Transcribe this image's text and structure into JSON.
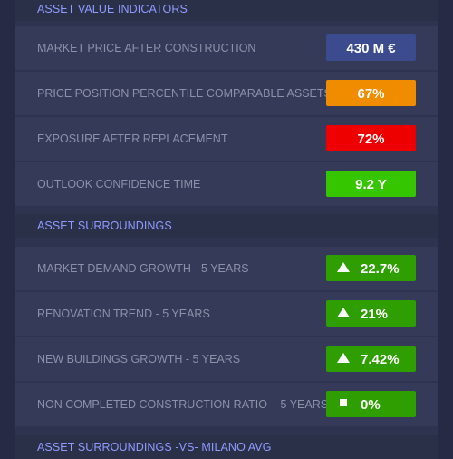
{
  "colors": {
    "neutral": "#3c4b8e",
    "orange": "#f08c00",
    "red": "#ee0000",
    "bright_green": "#35c600",
    "green": "#2e9e00"
  },
  "sections": {
    "asset_value": {
      "title": "ASSET VALUE INDICATORS",
      "rows": [
        {
          "label": "MARKET PRICE AFTER CONSTRUCTION",
          "value": "430 M €",
          "color": "neutral"
        },
        {
          "label": "PRICE POSITION PERCENTILE COMPARABLE ASSETS",
          "value": "67%",
          "color": "orange"
        },
        {
          "label": "EXPOSURE AFTER REPLACEMENT",
          "value": "72%",
          "color": "red"
        },
        {
          "label": "OUTLOOK CONFIDENCE TIME",
          "value": "9.2 Y",
          "color": "bright_green"
        }
      ]
    },
    "asset_surroundings": {
      "title": "ASSET SURROUNDINGS",
      "rows": [
        {
          "label": "MARKET DEMAND GROWTH - 5 YEARS",
          "value": "22.7%",
          "icon": "triangle-up-icon",
          "color": "green"
        },
        {
          "label": "RENOVATION TREND - 5 YEARS",
          "value": "21%",
          "icon": "triangle-up-icon",
          "color": "green"
        },
        {
          "label": "NEW BUILDINGS GROWTH - 5 YEARS",
          "value": "7.42%",
          "icon": "triangle-up-icon",
          "color": "green"
        },
        {
          "label": "NON COMPLETED CONSTRUCTION RATIO  - 5 YEARS",
          "value": "0%",
          "icon": "square-icon",
          "color": "green"
        }
      ]
    },
    "vs_milano": {
      "title": "ASSET SURROUNDINGS -VS- MILANO AVG"
    }
  }
}
